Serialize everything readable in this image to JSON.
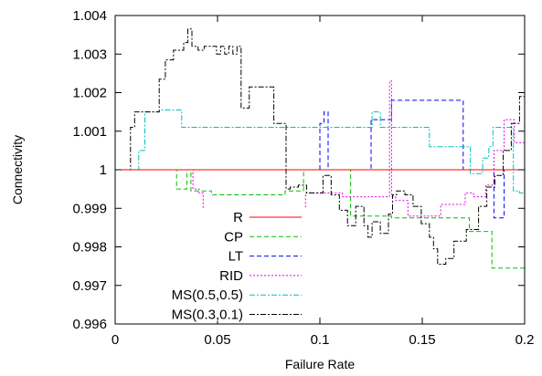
{
  "chart_data": {
    "type": "line",
    "title": "",
    "xlabel": "Failure Rate",
    "ylabel": "Connectivity",
    "xlim": [
      0,
      0.2
    ],
    "ylim": [
      0.996,
      1.004
    ],
    "x_ticks": [
      0,
      0.05,
      0.1,
      0.15,
      0.2
    ],
    "x_tick_labels": [
      "0",
      "0.05",
      "0.1",
      "0.15",
      "0.2"
    ],
    "y_ticks": [
      0.996,
      0.997,
      0.998,
      0.999,
      1,
      1.001,
      1.002,
      1.003,
      1.004
    ],
    "y_tick_labels": [
      "0.996",
      "0.997",
      "0.998",
      "0.999",
      "1",
      "1.001",
      "1.002",
      "1.003",
      "1.004"
    ],
    "grid": false,
    "legend_position": "bottom-left",
    "series": [
      {
        "name": "R",
        "color": "#ff0000",
        "dash": "solid",
        "x": [
          0,
          0.2
        ],
        "y": [
          1.0,
          1.0
        ]
      },
      {
        "name": "CP",
        "color": "#00c000",
        "dash": "dashed",
        "x": [
          0,
          0.03,
          0.03,
          0.035,
          0.035,
          0.037,
          0.037,
          0.047,
          0.047,
          0.083,
          0.083,
          0.085,
          0.085,
          0.092,
          0.092,
          0.115,
          0.115,
          0.135,
          0.135,
          0.173,
          0.173,
          0.184,
          0.184,
          0.2
        ],
        "y": [
          1.0,
          1.0,
          0.9995,
          0.9995,
          1.0,
          1.0,
          0.99945,
          0.99945,
          0.99935,
          0.99935,
          0.99945,
          0.99945,
          0.99945,
          0.99945,
          1.0,
          1.0,
          0.9988,
          0.9988,
          0.99875,
          0.99875,
          0.9984,
          0.9984,
          0.99745,
          0.99745
        ]
      },
      {
        "name": "LT",
        "color": "#0000ff",
        "dash": "dashed",
        "x": [
          0,
          0.1,
          0.1,
          0.102,
          0.102,
          0.104,
          0.104,
          0.125,
          0.125,
          0.135,
          0.135,
          0.17,
          0.17,
          0.185,
          0.185,
          0.19,
          0.19,
          0.2
        ],
        "y": [
          1.0,
          1.0,
          1.0012,
          1.0012,
          1.0015,
          1.0015,
          1.0,
          1.0,
          1.0013,
          1.0013,
          1.0018,
          1.0018,
          1.0,
          1.0,
          0.99875,
          0.99875,
          1.0,
          1.0
        ]
      },
      {
        "name": "RID",
        "color": "#e000e0",
        "dash": "dotted",
        "x": [
          0,
          0.038,
          0.038,
          0.041,
          0.041,
          0.043,
          0.043,
          0.093,
          0.093,
          0.111,
          0.111,
          0.134,
          0.134,
          0.135,
          0.135,
          0.137,
          0.137,
          0.143,
          0.143,
          0.159,
          0.159,
          0.171,
          0.171,
          0.175,
          0.175,
          0.181,
          0.181,
          0.185,
          0.185,
          0.19,
          0.19,
          0.195,
          0.195,
          0.2
        ],
        "y": [
          1.0,
          1.0,
          0.9995,
          0.9995,
          0.9994,
          0.9994,
          0.9989,
          0.9989,
          0.9994,
          0.9994,
          0.9993,
          0.9993,
          1.0023,
          1.0023,
          0.9993,
          0.9993,
          0.9992,
          0.9992,
          0.9988,
          0.9988,
          0.9991,
          0.9991,
          0.9994,
          0.9994,
          0.9993,
          0.9993,
          0.9996,
          0.9996,
          1.0005,
          1.0005,
          1.0013,
          1.0013,
          1.0007,
          1.0007
        ]
      },
      {
        "name": "MS(0.5,0.5)",
        "color": "#00c0c0",
        "dash": "dashdot",
        "x": [
          0,
          0.0115,
          0.0115,
          0.0145,
          0.0145,
          0.0215,
          0.0215,
          0.0325,
          0.0325,
          0.0335,
          0.0335,
          0.0575,
          0.0575,
          0.0595,
          0.0595,
          0.0755,
          0.0755,
          0.1075,
          0.1075,
          0.1105,
          0.1105,
          0.1255,
          0.1255,
          0.1295,
          0.1295,
          0.1535,
          0.1535,
          0.1585,
          0.1585,
          0.1735,
          0.1735,
          0.1795,
          0.1795,
          0.1825,
          0.1825,
          0.1845,
          0.1845,
          0.1945,
          0.1945,
          0.1975,
          0.1975,
          0.2
        ],
        "y": [
          1.0,
          1.0,
          1.0005,
          1.0005,
          1.0015,
          1.0015,
          1.00155,
          1.00155,
          1.0011,
          1.0011,
          1.0011,
          1.0011,
          1.0011,
          1.0011,
          1.0011,
          1.0011,
          1.0011,
          1.0011,
          1.0011,
          1.0011,
          1.0011,
          1.0011,
          1.0015,
          1.0015,
          1.0011,
          1.0011,
          1.0006,
          1.0006,
          1.0006,
          1.0006,
          0.9999,
          0.9999,
          1.0003,
          1.0003,
          1.0006,
          1.0006,
          1.0011,
          1.0011,
          0.99945,
          0.99945,
          0.9994,
          0.9994
        ]
      },
      {
        "name": "MS(0.3,0.1)",
        "color": "#000000",
        "dash": "dashdot",
        "x": [
          0,
          0.0075,
          0.0075,
          0.0095,
          0.0095,
          0.0165,
          0.0165,
          0.0215,
          0.0215,
          0.0245,
          0.0245,
          0.0285,
          0.0285,
          0.0335,
          0.0335,
          0.0355,
          0.0355,
          0.0375,
          0.0375,
          0.0405,
          0.0405,
          0.0435,
          0.0435,
          0.0495,
          0.0495,
          0.0515,
          0.0515,
          0.0535,
          0.0535,
          0.0555,
          0.0555,
          0.0575,
          0.0575,
          0.0595,
          0.0595,
          0.0615,
          0.0615,
          0.0655,
          0.0655,
          0.0715,
          0.0715,
          0.0775,
          0.0775,
          0.0835,
          0.0835,
          0.0855,
          0.0855,
          0.0895,
          0.0895,
          0.0935,
          0.0935,
          0.1015,
          0.1015,
          0.1055,
          0.1055,
          0.1095,
          0.1095,
          0.1135,
          0.1135,
          0.1175,
          0.1175,
          0.1215,
          0.1215,
          0.1235,
          0.1235,
          0.1255,
          0.1255,
          0.1295,
          0.1295,
          0.1335,
          0.1335,
          0.1355,
          0.1355,
          0.1375,
          0.1375,
          0.1415,
          0.1415,
          0.1455,
          0.1455,
          0.1495,
          0.1495,
          0.1535,
          0.1535,
          0.1555,
          0.1555,
          0.1575,
          0.1575,
          0.1615,
          0.1615,
          0.1655,
          0.1655,
          0.1715,
          0.1715,
          0.1775,
          0.1775,
          0.1815,
          0.1815,
          0.1855,
          0.1855,
          0.1895,
          0.1895,
          0.1935,
          0.1935,
          0.1975,
          0.1975,
          0.2
        ],
        "y": [
          1.0,
          1.0,
          1.0011,
          1.0011,
          1.0015,
          1.0015,
          1.0015,
          1.0015,
          1.00235,
          1.00235,
          1.00285,
          1.00285,
          1.0031,
          1.0031,
          1.0033,
          1.0033,
          1.00365,
          1.00365,
          1.0032,
          1.0032,
          1.0031,
          1.0031,
          1.0032,
          1.0032,
          1.003,
          1.003,
          1.0032,
          1.0032,
          1.003,
          1.003,
          1.0032,
          1.0032,
          1.003,
          1.003,
          1.0032,
          1.0032,
          1.0016,
          1.0016,
          1.00215,
          1.00215,
          1.00215,
          1.00215,
          1.0012,
          1.0012,
          0.9995,
          0.9995,
          0.99955,
          0.99955,
          0.9996,
          0.9996,
          0.9994,
          0.9994,
          0.99985,
          0.99985,
          0.99935,
          0.99935,
          0.99895,
          0.99895,
          0.99855,
          0.99855,
          0.99905,
          0.99905,
          0.99855,
          0.99855,
          0.99825,
          0.99825,
          0.99865,
          0.99865,
          0.99835,
          0.99835,
          0.99885,
          0.99885,
          0.99935,
          0.99935,
          0.99945,
          0.99945,
          0.99935,
          0.99935,
          0.99905,
          0.99905,
          0.9986,
          0.9986,
          0.99825,
          0.99825,
          0.99795,
          0.99795,
          0.99755,
          0.99755,
          0.9977,
          0.9977,
          0.99815,
          0.99815,
          0.99845,
          0.99845,
          0.99905,
          0.99905,
          0.99955,
          0.99955,
          0.99985,
          0.99985,
          1.0005,
          1.0005,
          1.0012,
          1.0012,
          1.0019,
          1.0019
        ]
      }
    ]
  }
}
